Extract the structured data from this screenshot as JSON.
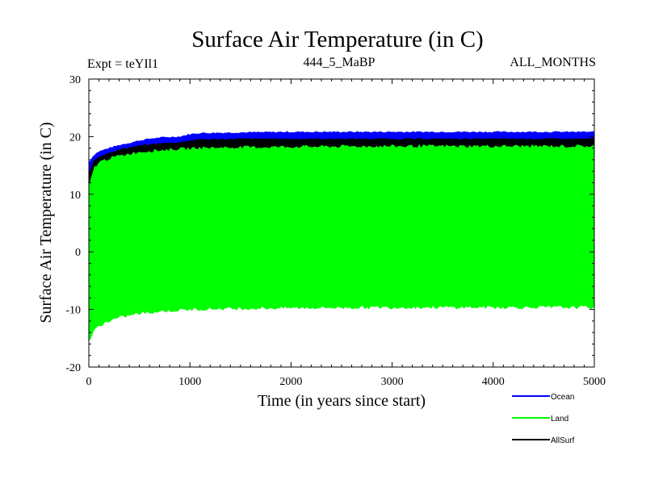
{
  "chart_data": {
    "type": "area",
    "title": "Surface Air Temperature (in C)",
    "subtitle_left": "Expt = teYIl1",
    "subtitle_center": "444_5_MaBP",
    "subtitle_right": "ALL_MONTHS",
    "xlabel": "Time (in years since start)",
    "ylabel": "Surface Air Temperature (in C)",
    "xlim": [
      0,
      5000
    ],
    "ylim": [
      -20,
      30
    ],
    "x_ticks": [
      0,
      1000,
      2000,
      3000,
      4000,
      5000
    ],
    "y_ticks": [
      -20,
      -10,
      0,
      10,
      20,
      30
    ],
    "x_tick_labels": [
      "0",
      "1000",
      "2000",
      "3000",
      "4000",
      "5000"
    ],
    "y_tick_labels": [
      "-20",
      "-10",
      "0",
      "10",
      "20",
      "30"
    ],
    "legend_position": "bottom-right, outside plot",
    "series": [
      {
        "name": "Ocean",
        "color": "#0000ff",
        "x": [
          0,
          50,
          100,
          200,
          300,
          400,
          500,
          600,
          700,
          800,
          900,
          1000,
          1100,
          1500,
          2000,
          3000,
          4000,
          5000
        ],
        "upper": [
          15.5,
          16.8,
          17.4,
          18.0,
          18.5,
          18.9,
          19.3,
          19.6,
          19.8,
          19.9,
          20.0,
          20.4,
          20.6,
          20.7,
          20.8,
          20.8,
          20.8,
          20.8
        ],
        "lower": [
          12.0,
          14.5,
          15.2,
          16.2,
          16.8,
          17.3,
          17.7,
          18.0,
          18.2,
          18.4,
          18.6,
          18.9,
          19.2,
          19.3,
          19.4,
          19.4,
          19.4,
          19.4
        ]
      },
      {
        "name": "Land",
        "color": "#00ff00",
        "x": [
          0,
          50,
          100,
          200,
          300,
          400,
          500,
          600,
          700,
          800,
          900,
          1000,
          1100,
          1500,
          2000,
          3000,
          4000,
          5000
        ],
        "upper": [
          11.0,
          14.5,
          15.5,
          16.2,
          16.6,
          17.0,
          17.3,
          17.5,
          17.6,
          17.7,
          17.8,
          17.9,
          18.0,
          18.1,
          18.2,
          18.3,
          18.3,
          18.3
        ],
        "lower": [
          -15.5,
          -13.8,
          -12.8,
          -12.0,
          -11.4,
          -11.0,
          -10.7,
          -10.5,
          -10.3,
          -10.2,
          -10.1,
          -10.0,
          -9.9,
          -9.8,
          -9.7,
          -9.6,
          -9.6,
          -9.6
        ]
      },
      {
        "name": "AllSurf",
        "color": "#000000",
        "x": [
          0,
          50,
          100,
          200,
          300,
          400,
          500,
          600,
          700,
          800,
          900,
          1000,
          1100,
          1500,
          2000,
          3000,
          4000,
          5000
        ],
        "upper": [
          13.5,
          15.8,
          16.5,
          17.2,
          17.7,
          18.1,
          18.4,
          18.6,
          18.8,
          18.9,
          19.0,
          19.3,
          19.5,
          19.6,
          19.6,
          19.6,
          19.6,
          19.6
        ],
        "lower": [
          11.5,
          14.0,
          15.0,
          15.9,
          16.4,
          16.8,
          17.1,
          17.3,
          17.5,
          17.6,
          17.7,
          17.8,
          17.9,
          18.0,
          18.1,
          18.1,
          18.1,
          18.1
        ]
      }
    ]
  }
}
